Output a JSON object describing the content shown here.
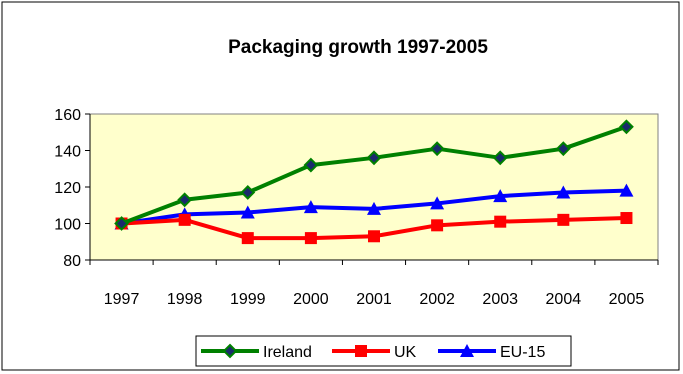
{
  "chart_data": {
    "type": "line",
    "title": "Packaging growth 1997-2005",
    "xlabel": "",
    "ylabel": "",
    "x": [
      "1997",
      "1998",
      "1999",
      "2000",
      "2001",
      "2002",
      "2003",
      "2004",
      "2005"
    ],
    "ylim": [
      80,
      160
    ],
    "yticks": [
      "80",
      "100",
      "120",
      "140",
      "160"
    ],
    "grid": false,
    "plot_background": "#FFFFCC",
    "legend_position": "bottom",
    "series": [
      {
        "name": "Ireland",
        "color": "#008000",
        "marker": "diamond",
        "values": [
          100,
          113,
          117,
          132,
          136,
          141,
          136,
          141,
          153
        ]
      },
      {
        "name": "UK",
        "color": "#FF0000",
        "marker": "square",
        "values": [
          100,
          102,
          92,
          92,
          93,
          99,
          101,
          102,
          103
        ]
      },
      {
        "name": "EU-15",
        "color": "#0000FF",
        "marker": "triangle",
        "values": [
          100,
          105,
          106,
          109,
          108,
          111,
          115,
          117,
          118
        ]
      }
    ]
  }
}
